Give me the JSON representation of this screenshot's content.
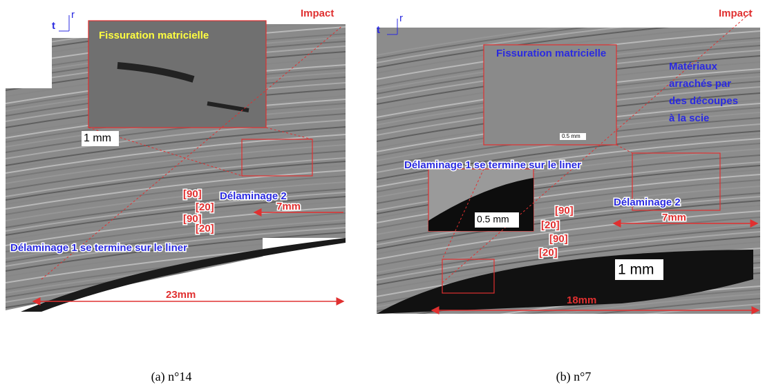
{
  "panels": [
    {
      "caption": "(a) n°14",
      "impact": "Impact",
      "axis_t": "t",
      "axis_r": "r",
      "inset_title": "Fissuration matricielle",
      "inset_scale": "1 mm",
      "plies": [
        "[90]",
        "[20]",
        "[90]",
        "[20]"
      ],
      "delamination_2": "Délaminage 2",
      "span_small": "7mm",
      "delamination_1": "Délaminage 1 se termine sur le liner",
      "span_large": "23mm"
    },
    {
      "caption": "(b) n°7",
      "impact": "Impact",
      "axis_t": "t",
      "axis_r": "r",
      "inset_title": "Fissuration matricielle",
      "inset_scale": "0.5 mm",
      "saw_note": [
        "Matériaux",
        "arrachés par",
        "des découpes",
        "à la scie"
      ],
      "delamination_1": "Délaminage 1 se termine sur le liner",
      "inset2_scale": "0.5 mm",
      "delamination_2": "Délaminage 2",
      "plies": [
        "[90]",
        "[20]",
        "[90]",
        "[20]"
      ],
      "span_small": "7mm",
      "scale": "1 mm",
      "span_large": "18mm"
    }
  ]
}
